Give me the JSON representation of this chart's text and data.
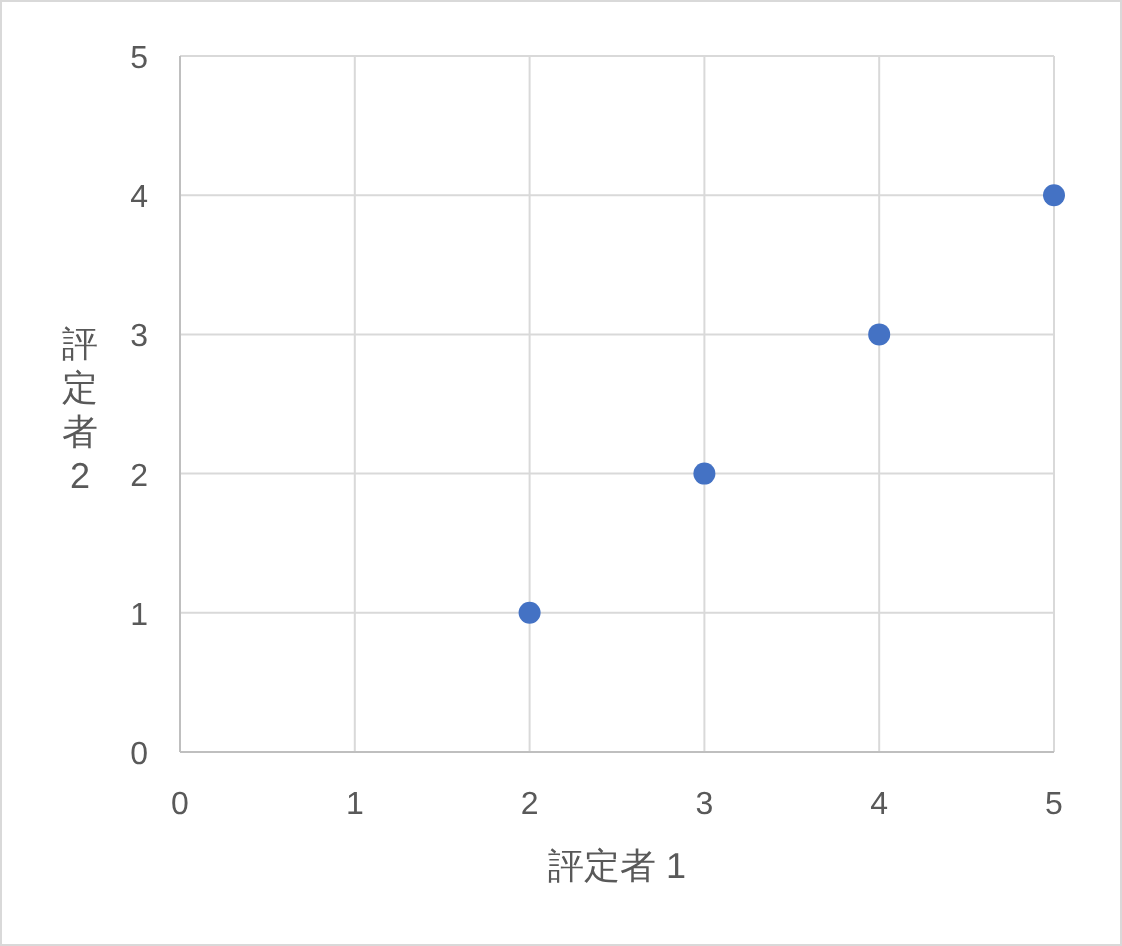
{
  "chart_data": {
    "type": "scatter",
    "xlabel": "評定者 1",
    "ylabel": "評定者 2",
    "x": [
      2,
      3,
      4,
      5
    ],
    "series": [
      {
        "color": "#4472c4",
        "values": [
          1,
          2,
          3,
          4
        ]
      }
    ],
    "xlim": [
      0,
      5
    ],
    "ylim": [
      0,
      5
    ],
    "xticks": [
      0,
      1,
      2,
      3,
      4,
      5
    ],
    "yticks": [
      0,
      1,
      2,
      3,
      4,
      5
    ],
    "grid": true,
    "marker": "circle"
  }
}
